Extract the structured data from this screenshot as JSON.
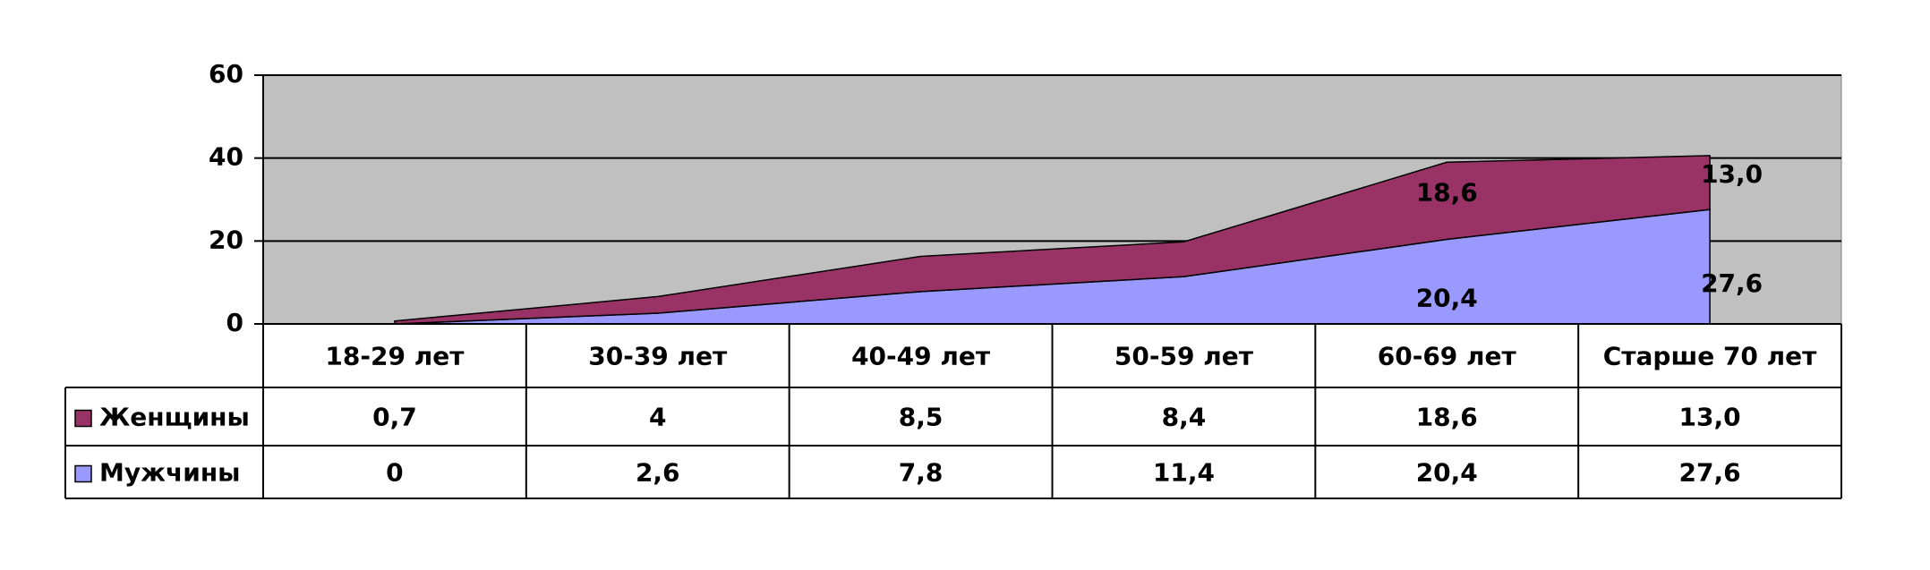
{
  "chart_data": {
    "type": "stacked_area",
    "categories": [
      "18-29 лет",
      "30-39 лет",
      "40-49 лет",
      "50-59 лет",
      "60-69 лет",
      "Старше 70 лет"
    ],
    "series": [
      {
        "name": "Женщины",
        "color": "#993366",
        "values": [
          0.7,
          4,
          8.5,
          8.4,
          18.6,
          13.0
        ],
        "value_labels": [
          "0,7",
          "4",
          "8,5",
          "8,4",
          "18,6",
          "13,0"
        ]
      },
      {
        "name": "Мужчины",
        "color": "#9999ff",
        "values": [
          0,
          2.6,
          7.8,
          11.4,
          20.4,
          27.6
        ],
        "value_labels": [
          "0",
          "2,6",
          "7,8",
          "11,4",
          "20,4",
          "27,6"
        ]
      }
    ],
    "ylim": [
      0,
      60
    ],
    "yticks": [
      0,
      20,
      40,
      60
    ],
    "grid": true,
    "plot_background": "#c0c0c0"
  }
}
